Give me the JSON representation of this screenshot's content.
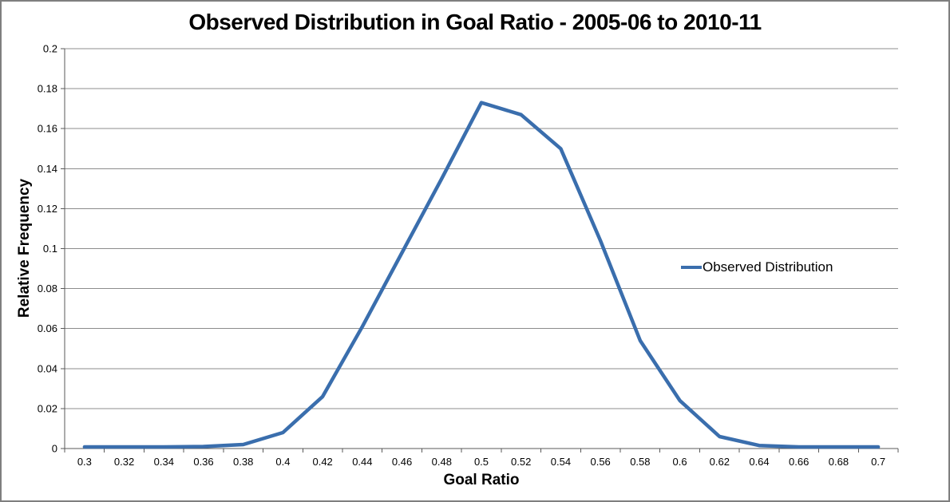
{
  "chart_data": {
    "type": "line",
    "title": "Observed Distribution in Goal Ratio - 2005-06 to 2010-11",
    "xlabel": "Goal Ratio",
    "ylabel": "Relative Frequency",
    "grid": true,
    "legend_position": "right-middle",
    "legend": {
      "entries": [
        "Observed Distribution"
      ]
    },
    "ylim": [
      0,
      0.2
    ],
    "y_tick_step": 0.02,
    "y_ticks": [
      "0",
      "0.02",
      "0.04",
      "0.06",
      "0.08",
      "0.1",
      "0.12",
      "0.14",
      "0.16",
      "0.18",
      "0.2"
    ],
    "categories": [
      "0.3",
      "0.32",
      "0.34",
      "0.36",
      "0.38",
      "0.4",
      "0.42",
      "0.44",
      "0.46",
      "0.48",
      "0.5",
      "0.52",
      "0.54",
      "0.56",
      "0.58",
      "0.6",
      "0.62",
      "0.64",
      "0.66",
      "0.68",
      "0.7"
    ],
    "series": [
      {
        "name": "Observed Distribution",
        "color": "#3a6ead",
        "values": [
          0.0008,
          0.0008,
          0.0008,
          0.001,
          0.002,
          0.008,
          0.026,
          0.061,
          0.098,
          0.135,
          0.173,
          0.167,
          0.15,
          0.104,
          0.054,
          0.024,
          0.006,
          0.0015,
          0.0008,
          0.0008,
          0.0008
        ]
      }
    ]
  }
}
